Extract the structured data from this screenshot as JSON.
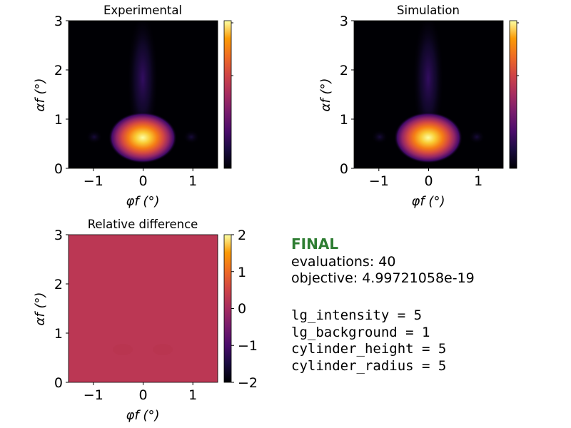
{
  "chart_data": [
    {
      "type": "heatmap",
      "title": "Experimental",
      "xlabel": "φf (°)",
      "ylabel": "αf (°)",
      "xlim": [
        -1.5,
        1.5
      ],
      "ylim": [
        0,
        3
      ],
      "xticks": [
        "−1",
        "0",
        "1"
      ],
      "yticks": [
        "0",
        "1",
        "2",
        "3"
      ],
      "colormap": "inferno",
      "peak": {
        "phi": 0,
        "alpha": 0.62
      },
      "colorbar_ticks": []
    },
    {
      "type": "heatmap",
      "title": "Simulation",
      "xlabel": "φf (°)",
      "ylabel": "αf (°)",
      "xlim": [
        -1.5,
        1.5
      ],
      "ylim": [
        0,
        3
      ],
      "xticks": [
        "−1",
        "0",
        "1"
      ],
      "yticks": [
        "0",
        "1",
        "2",
        "3"
      ],
      "colormap": "inferno",
      "peak": {
        "phi": 0,
        "alpha": 0.62
      },
      "colorbar_ticks": []
    },
    {
      "type": "heatmap",
      "title": "Relative difference",
      "xlabel": "φf (°)",
      "ylabel": "αf (°)",
      "xlim": [
        -1.5,
        1.5
      ],
      "ylim": [
        0,
        3
      ],
      "xticks": [
        "−1",
        "0",
        "1"
      ],
      "yticks": [
        "0",
        "1",
        "2",
        "3"
      ],
      "colormap": "inferno",
      "value": 0,
      "fill_color": "#bb3754",
      "colorbar_range": [
        -2,
        2
      ],
      "colorbar_ticks": [
        "2",
        "1",
        "0",
        "−1",
        "−2"
      ]
    }
  ],
  "status": {
    "heading": "FINAL",
    "heading_color": "#2e7d32",
    "evaluations": "evaluations: 40",
    "objective": "objective: 4.99721058e-19",
    "params": [
      "lg_intensity = 5",
      "lg_background = 1",
      "cylinder_height = 5",
      "cylinder_radius = 5"
    ]
  }
}
